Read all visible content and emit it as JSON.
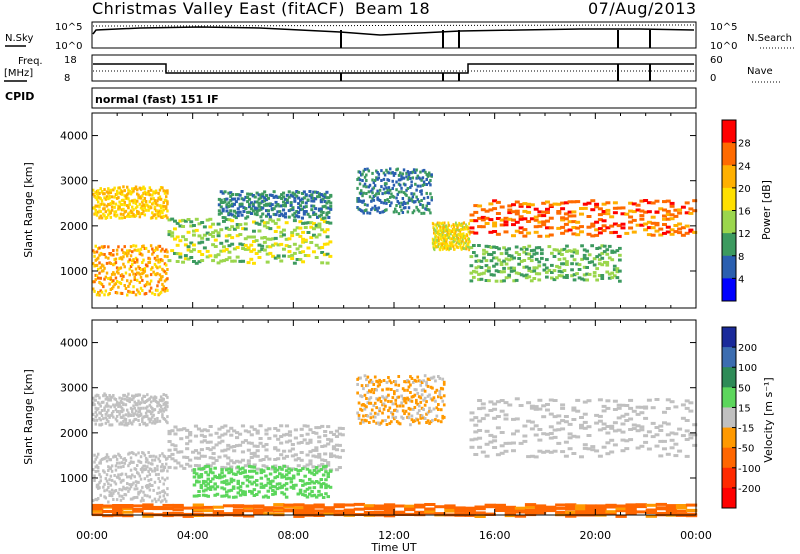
{
  "header": {
    "station": "Christmas Valley East (fitACF)",
    "beam": "Beam 18",
    "date": "07/Aug/2013"
  },
  "top_panels": {
    "nsky_label": "N.Sky",
    "nsky_ticks": [
      "10^5",
      "10^0"
    ],
    "nsearch_label": "N.Search",
    "nsearch_ticks": [
      "10^5",
      "10^0"
    ],
    "freq_label_1": "Freq.",
    "freq_label_2": "[MHz]",
    "freq_ticks": [
      "18",
      "8"
    ],
    "nave_label": "Nave",
    "nave_ticks": [
      "60",
      "0"
    ],
    "cpid_label": "CPID",
    "cpid_value": "normal (fast) 151 IF"
  },
  "chart_data": [
    {
      "type": "heatmap",
      "title": "",
      "xlabel": "Time UT",
      "ylabel": "Slant Range [km]",
      "xlim": [
        0,
        24
      ],
      "ylim": [
        180,
        4500
      ],
      "x_ticks": [
        "00:00",
        "04:00",
        "08:00",
        "12:00",
        "16:00",
        "20:00",
        "00:00"
      ],
      "y_ticks": [
        "1000",
        "2000",
        "3000",
        "4000"
      ],
      "colorbar": {
        "label": "Power [dB]",
        "ticks": [
          "28",
          "24",
          "20",
          "16",
          "12",
          "8",
          "4"
        ],
        "colors": [
          "#ff0000",
          "#ff6a00",
          "#ffb000",
          "#ffe000",
          "#9bd64d",
          "#3c9a5f",
          "#2a5fb0",
          "#0000ff"
        ]
      },
      "echo_bands": [
        {
          "t": [
            0.0,
            3.0
          ],
          "range": [
            2200,
            2900
          ],
          "power": 20
        },
        {
          "t": [
            0.0,
            3.0
          ],
          "range": [
            500,
            1600
          ],
          "power": 22
        },
        {
          "t": [
            3.0,
            9.5
          ],
          "range": [
            1200,
            2200
          ],
          "power": 14
        },
        {
          "t": [
            5.0,
            9.5
          ],
          "range": [
            2200,
            2800
          ],
          "power": 8
        },
        {
          "t": [
            10.5,
            13.5
          ],
          "range": [
            2300,
            3300
          ],
          "power": 8
        },
        {
          "t": [
            13.5,
            15.0
          ],
          "range": [
            1500,
            2100
          ],
          "power": 18
        },
        {
          "t": [
            15.0,
            24.0
          ],
          "range": [
            1800,
            2600
          ],
          "power": 26
        },
        {
          "t": [
            15.0,
            21.0
          ],
          "range": [
            800,
            1600
          ],
          "power": 12
        }
      ]
    },
    {
      "type": "heatmap",
      "title": "",
      "xlabel": "Time UT",
      "ylabel": "Slant Range [km]",
      "xlim": [
        0,
        24
      ],
      "ylim": [
        180,
        4500
      ],
      "x_ticks": [
        "00:00",
        "04:00",
        "08:00",
        "12:00",
        "16:00",
        "20:00",
        "00:00"
      ],
      "y_ticks": [
        "1000",
        "2000",
        "3000",
        "4000"
      ],
      "colorbar": {
        "label": "Velocity [m s⁻¹]",
        "ticks": [
          "200",
          "100",
          "50",
          "15",
          "-15",
          "-50",
          "-100",
          "-200"
        ],
        "colors": [
          "#1a2a9a",
          "#3c6db0",
          "#2e8b57",
          "#5cd65c",
          "#c0c0c0",
          "#ff9900",
          "#ff6600",
          "#ff2a00",
          "#ff0000"
        ]
      },
      "echo_bands": [
        {
          "t": [
            0.0,
            3.0
          ],
          "range": [
            2200,
            2900
          ],
          "velocity": 0
        },
        {
          "t": [
            0.0,
            3.0
          ],
          "range": [
            500,
            1600
          ],
          "velocity": 0
        },
        {
          "t": [
            3.0,
            10.0
          ],
          "range": [
            1200,
            2200
          ],
          "velocity": 0
        },
        {
          "t": [
            4.0,
            9.5
          ],
          "range": [
            600,
            1300
          ],
          "velocity": 30
        },
        {
          "t": [
            10.5,
            14.0
          ],
          "range": [
            2200,
            3300
          ],
          "velocity": -20
        },
        {
          "t": [
            15.0,
            24.0
          ],
          "range": [
            1500,
            2800
          ],
          "velocity": 0
        },
        {
          "t": [
            0.0,
            24.0
          ],
          "range": [
            180,
            450
          ],
          "velocity": -60
        }
      ]
    }
  ],
  "colors": {
    "frame": "#000000",
    "background": "#ffffff"
  }
}
